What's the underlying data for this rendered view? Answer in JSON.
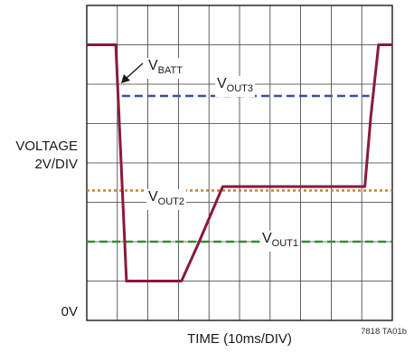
{
  "chart_data": {
    "type": "line",
    "title": "",
    "xlabel": "TIME (10ms/DIV)",
    "ylabel_line1": "VOLTAGE",
    "ylabel_line2": "2V/DIV",
    "y_zero_label": "0V",
    "figure_code": "7818 TA01b",
    "x_range_div": [
      0,
      10
    ],
    "y_range_div": [
      0,
      8
    ],
    "grid": true,
    "series": [
      {
        "name": "VBATT",
        "label_main": "V",
        "label_sub": "BATT",
        "color": "#8a1a3a",
        "style": "solid",
        "x": [
          0,
          0.95,
          1.3,
          3.1,
          3.65,
          4.45,
          9.1,
          9.3,
          9.55,
          10
        ],
        "y": [
          7.0,
          7.0,
          1.0,
          1.0,
          1.95,
          3.4,
          3.4,
          5.2,
          7.0,
          7.0
        ]
      },
      {
        "name": "VOUT3",
        "label_main": "V",
        "label_sub": "OUT3",
        "color": "#3a4fa0",
        "style": "dashed",
        "x": [
          1.15,
          9.25
        ],
        "y": [
          5.7,
          5.7
        ]
      },
      {
        "name": "VOUT2",
        "label_main": "V",
        "label_sub": "OUT2",
        "color": "#c8822a",
        "style": "dotted",
        "x": [
          0,
          10
        ],
        "y": [
          3.3,
          3.3
        ]
      },
      {
        "name": "VOUT1",
        "label_main": "V",
        "label_sub": "OUT1",
        "color": "#3a8a3a",
        "style": "dashed",
        "x": [
          0,
          10
        ],
        "y": [
          2.0,
          2.0
        ]
      }
    ]
  }
}
